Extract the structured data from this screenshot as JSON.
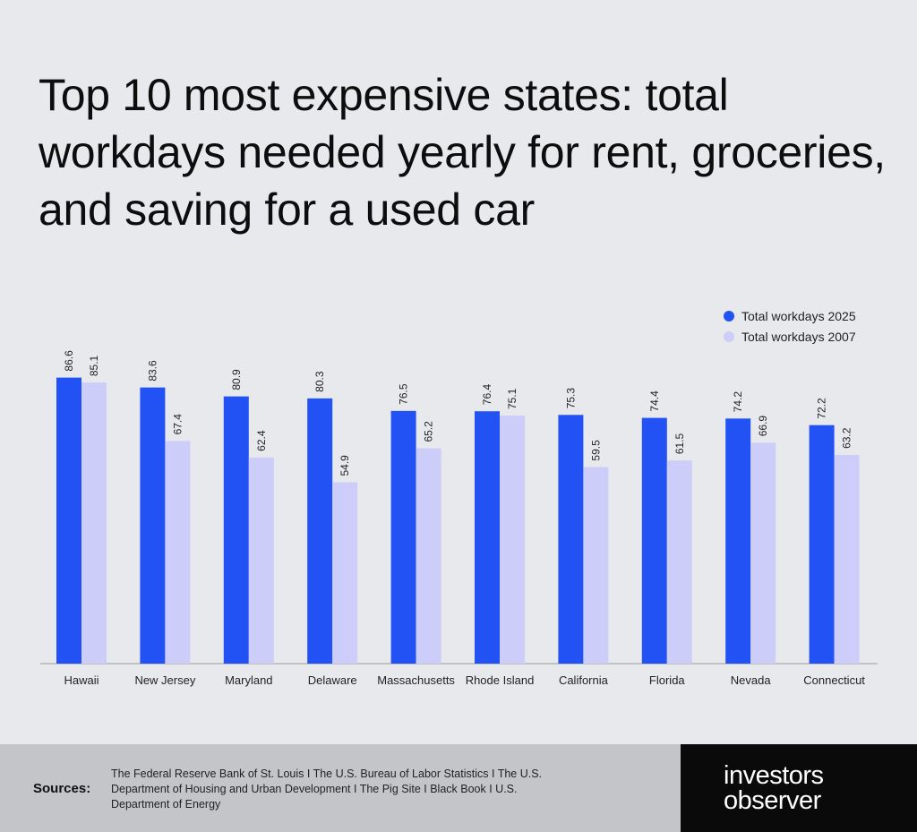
{
  "title": "Top 10 most expensive states: total workdays needed yearly for rent, groceries, and saving for a used car",
  "colors": {
    "series2025": "#2352f4",
    "series2007": "#cdcdfa",
    "axis": "#9a9a9a",
    "background": "#e8e9ec"
  },
  "legend": [
    {
      "label": "Total workdays 2025",
      "color": "#2352f4"
    },
    {
      "label": "Total workdays 2007",
      "color": "#cdcdfa"
    }
  ],
  "chart_data": {
    "type": "bar",
    "title": "Top 10 most expensive states: total workdays needed yearly for rent, groceries, and saving for a used car",
    "xlabel": "",
    "ylabel": "",
    "ylim": [
      0,
      93
    ],
    "grid": false,
    "legend_position": "top-right",
    "categories": [
      "Hawaii",
      "New Jersey",
      "Maryland",
      "Delaware",
      "Massachusetts",
      "Rhode Island",
      "California",
      "Florida",
      "Nevada",
      "Connecticut"
    ],
    "series": [
      {
        "name": "Total workdays 2025",
        "values": [
          86.6,
          83.6,
          80.9,
          80.3,
          76.5,
          76.4,
          75.3,
          74.4,
          74.2,
          72.2
        ]
      },
      {
        "name": "Total workdays 2007",
        "values": [
          85.1,
          67.4,
          62.4,
          54.9,
          65.2,
          75.1,
          59.5,
          61.5,
          66.9,
          63.2
        ]
      }
    ]
  },
  "footer": {
    "sources_label": "Sources:",
    "sources_text": "The Federal Reserve Bank of St. Louis  I  The U.S. Bureau of Labor Statistics  I  The U.S. Department of Housing and Urban Development  I  The Pig Site  I  Black Book  I  U.S. Department of Energy"
  },
  "brand": {
    "line1": "investors",
    "line2": "observer"
  }
}
